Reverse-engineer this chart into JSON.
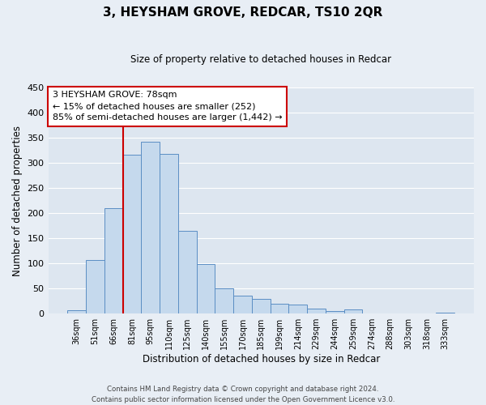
{
  "title": "3, HEYSHAM GROVE, REDCAR, TS10 2QR",
  "subtitle": "Size of property relative to detached houses in Redcar",
  "xlabel": "Distribution of detached houses by size in Redcar",
  "ylabel": "Number of detached properties",
  "bin_labels": [
    "36sqm",
    "51sqm",
    "66sqm",
    "81sqm",
    "95sqm",
    "110sqm",
    "125sqm",
    "140sqm",
    "155sqm",
    "170sqm",
    "185sqm",
    "199sqm",
    "214sqm",
    "229sqm",
    "244sqm",
    "259sqm",
    "274sqm",
    "288sqm",
    "303sqm",
    "318sqm",
    "333sqm"
  ],
  "bar_heights": [
    7,
    107,
    210,
    317,
    342,
    318,
    165,
    99,
    51,
    36,
    30,
    19,
    18,
    10,
    5,
    9,
    0,
    0,
    0,
    0,
    2
  ],
  "bar_color": "#c5d9ed",
  "bar_edge_color": "#5b8ec4",
  "vline_index": 3,
  "vline_color": "#cc0000",
  "ylim": [
    0,
    450
  ],
  "yticks": [
    0,
    50,
    100,
    150,
    200,
    250,
    300,
    350,
    400,
    450
  ],
  "annotation_title": "3 HEYSHAM GROVE: 78sqm",
  "annotation_line1": "← 15% of detached houses are smaller (252)",
  "annotation_line2": "85% of semi-detached houses are larger (1,442) →",
  "annotation_box_facecolor": "#ffffff",
  "annotation_box_edgecolor": "#cc0000",
  "footer_line1": "Contains HM Land Registry data © Crown copyright and database right 2024.",
  "footer_line2": "Contains public sector information licensed under the Open Government Licence v3.0.",
  "fig_facecolor": "#e8eef5",
  "axes_facecolor": "#dde6f0",
  "grid_color": "#ffffff"
}
